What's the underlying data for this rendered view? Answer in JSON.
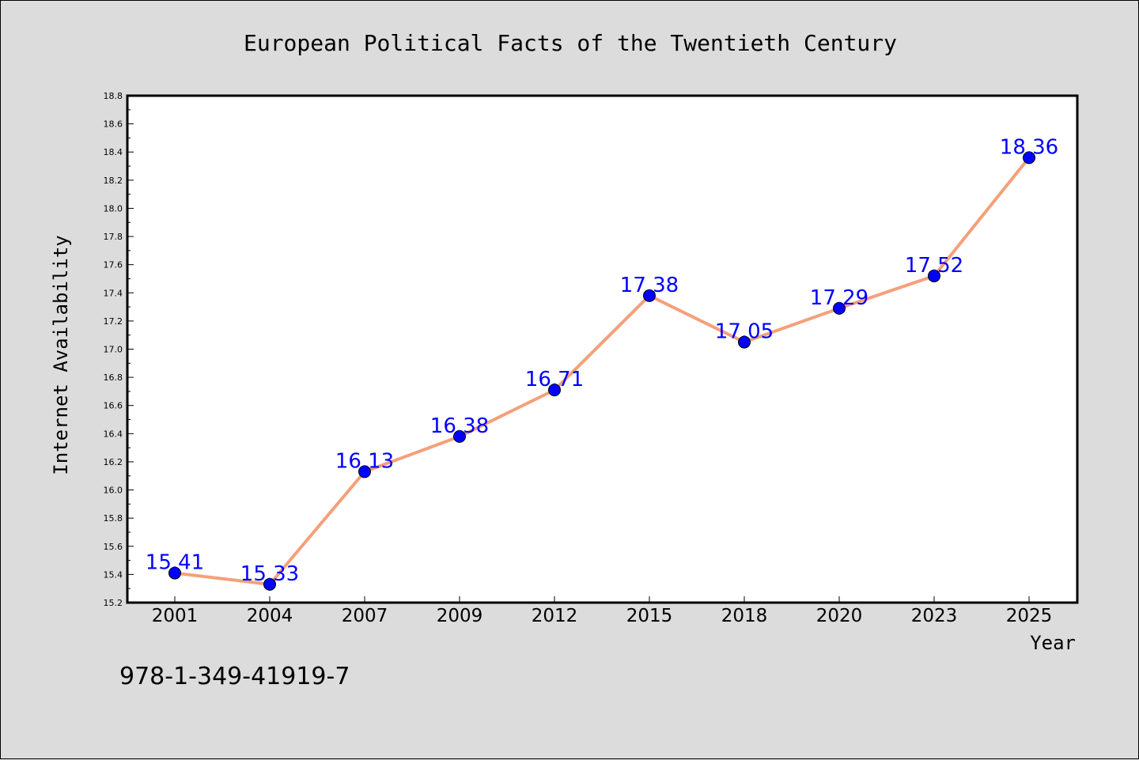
{
  "chart_data": {
    "type": "line",
    "title": "European Political Facts of the Twentieth Century",
    "xlabel": "Year",
    "ylabel": "Internet Availability",
    "categories": [
      "2001",
      "2004",
      "2007",
      "2009",
      "2012",
      "2015",
      "2018",
      "2020",
      "2023",
      "2025"
    ],
    "series": [
      {
        "values": [
          15.41,
          15.33,
          16.13,
          16.38,
          16.71,
          17.38,
          17.05,
          17.29,
          17.52,
          18.36
        ],
        "line_color": "#f4a07a",
        "marker_color": "#0000ff"
      }
    ],
    "data_labels": [
      "15.41",
      "15.33",
      "16.13",
      "16.38",
      "16.71",
      "17.38",
      "17.05",
      "17.29",
      "17.52",
      "18.36"
    ],
    "ylim": [
      15.2,
      18.8
    ],
    "yticks": [
      "15.2",
      "15.4",
      "15.6",
      "15.8",
      "16.0",
      "16.2",
      "16.4",
      "16.6",
      "16.8",
      "17.0",
      "17.2",
      "17.4",
      "17.6",
      "17.8",
      "18.0",
      "18.2",
      "18.4",
      "18.6",
      "18.8"
    ],
    "grid": false,
    "legend": "none",
    "background_color": "#dcdcdc",
    "plot_background_color": "#ffffff"
  },
  "annotation": "978-1-349-41919-7"
}
